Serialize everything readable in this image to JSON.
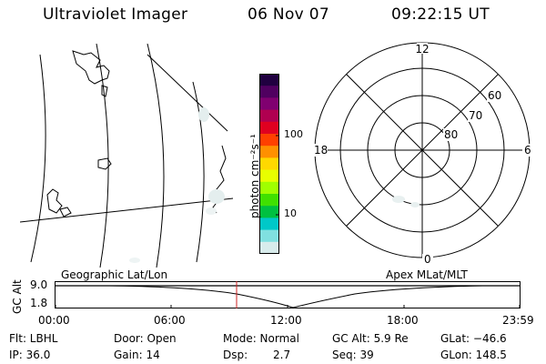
{
  "header": {
    "instrument": "Ultraviolet Imager",
    "date": "06 Nov 07",
    "time": "09:22:15 UT"
  },
  "colorbar": {
    "unit_label": "photon cm⁻²s⁻¹",
    "tick_100": "100",
    "tick_10": "10",
    "colors": [
      "#200040",
      "#500060",
      "#800070",
      "#b00050",
      "#e00020",
      "#ff4000",
      "#ff9000",
      "#ffd800",
      "#e8ff00",
      "#a0ff00",
      "#40e000",
      "#00c040",
      "#00c8c8",
      "#80e0e0",
      "#d8ecec"
    ]
  },
  "polar": {
    "mlt_top": "12",
    "mlt_left": "18",
    "mlt_right": "6",
    "mlt_bottom": "0",
    "lat_60": "60",
    "lat_70": "70",
    "lat_80": "80"
  },
  "strip": {
    "left_title": "Geographic Lat/Lon",
    "right_title": "Apex MLat/MLT",
    "axis_label": "GC Alt",
    "y_max": "9.0",
    "y_min": "1.8",
    "marker_color": "#cc2020",
    "ticks": [
      "00:00",
      "06:00",
      "12:00",
      "18:00",
      "23:59"
    ]
  },
  "info": {
    "flt": "Flt: LBHL",
    "ip": "IP: 36.0",
    "door": "Door: Open",
    "gain": "Gain: 14",
    "mode": "Mode: Normal",
    "dsp_label": "Dsp:",
    "dsp_value": "2.7",
    "gc_alt": "GC Alt: 5.9 Re",
    "seq": "Seq: 39",
    "glat": "GLat: −46.6",
    "glon": "GLon: 148.5"
  }
}
